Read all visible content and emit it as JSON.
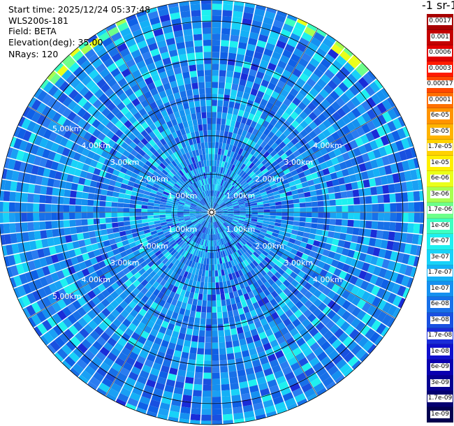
{
  "header": {
    "start_time": "Start time: 2025/12/24 05:37:48",
    "instrument": "WLS200s-181",
    "field": "Field: BETA",
    "elevation": "Elevation(deg): 35.00",
    "nrays": "NRays: 120"
  },
  "colorbar_title": "-1 sr-1",
  "chart_data": {
    "type": "ppi-polar-scan",
    "field": "BETA",
    "elevation_deg": 35.0,
    "n_rays": 120,
    "range_rings_km": [
      1,
      2,
      3,
      4,
      5
    ],
    "ring_labels": [
      "1.00km",
      "2.00km",
      "3.00km",
      "4.00km",
      "5.00km"
    ],
    "max_range_km": 5.55,
    "dominant_value_range": [
      "1e-08",
      "1.7e-07"
    ],
    "colorbar": {
      "labels": [
        "0.0017",
        "0.001",
        "0.0006",
        "0.0003",
        "0.00017",
        "0.0001",
        "6e-05",
        "3e-05",
        "1.7e-05",
        "1e-05",
        "6e-06",
        "3e-06",
        "1.7e-06",
        "1e-06",
        "6e-07",
        "3e-07",
        "1.7e-07",
        "1e-07",
        "6e-08",
        "3e-08",
        "1.7e-08",
        "1e-08",
        "6e-09",
        "3e-09",
        "1.7e-09",
        "1e-09"
      ],
      "colors": [
        "#a80000",
        "#c40000",
        "#e00000",
        "#ff1a00",
        "#ff4800",
        "#ff7000",
        "#ff9400",
        "#ffb400",
        "#ffd200",
        "#fff000",
        "#eaff1a",
        "#a8ff50",
        "#6dff8a",
        "#3cffc0",
        "#1ef0f0",
        "#18d2f8",
        "#14b0f6",
        "#1590f0",
        "#1870e8",
        "#1950e0",
        "#1a2cd8",
        "#1010cc",
        "#0a00b0",
        "#060090",
        "#040070",
        "#020050"
      ]
    }
  }
}
